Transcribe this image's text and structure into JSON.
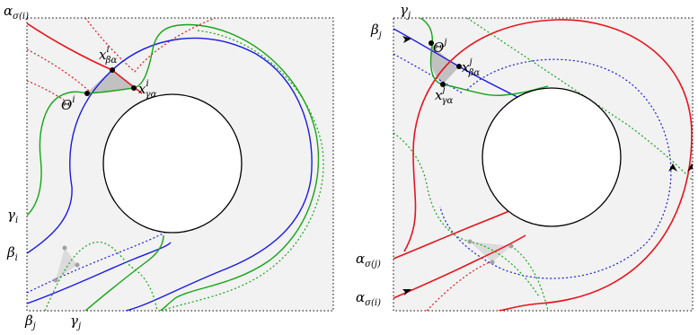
{
  "colors": {
    "panel_bg": "#f2f2f2",
    "border": "#000000",
    "red": "#e8141b",
    "blue": "#1a1ae6",
    "green": "#16a516",
    "shade_dark": "#b8b8b8",
    "shade_light": "#d8d8d8",
    "point": "#000000",
    "point_faded": "#a0a0a0"
  },
  "left_panel": {
    "labels": {
      "alpha_sigma_i": "α",
      "alpha_sigma_i_sub": "σ(i)",
      "x_beta_alpha": "x",
      "x_beta_alpha_sup": "i",
      "x_beta_alpha_sub": "βα",
      "x_gamma_alpha": "x",
      "x_gamma_alpha_sup": "i",
      "x_gamma_alpha_sub": "γα",
      "theta": "Θ",
      "theta_sup": "i",
      "gamma_i": "γ",
      "gamma_i_sub": "i",
      "beta_i": "β",
      "beta_i_sub": "i",
      "beta_j": "β",
      "beta_j_sub": "j",
      "gamma_j": "γ",
      "gamma_j_sub": "j"
    }
  },
  "right_panel": {
    "labels": {
      "gamma_j": "γ",
      "gamma_j_sub": "j",
      "beta_j": "β",
      "beta_j_sub": "j",
      "theta": "Θ",
      "theta_sup": "j",
      "x_beta_alpha": "x",
      "x_beta_alpha_sup": "j",
      "x_beta_alpha_sub": "βα",
      "x_gamma_alpha": "x",
      "x_gamma_alpha_sup": "j",
      "x_gamma_alpha_sub": "γα",
      "alpha_sigma_j": "α",
      "alpha_sigma_j_sub": "σ(j)",
      "alpha_sigma_i": "α",
      "alpha_sigma_i_sub": "σ(i)"
    }
  }
}
